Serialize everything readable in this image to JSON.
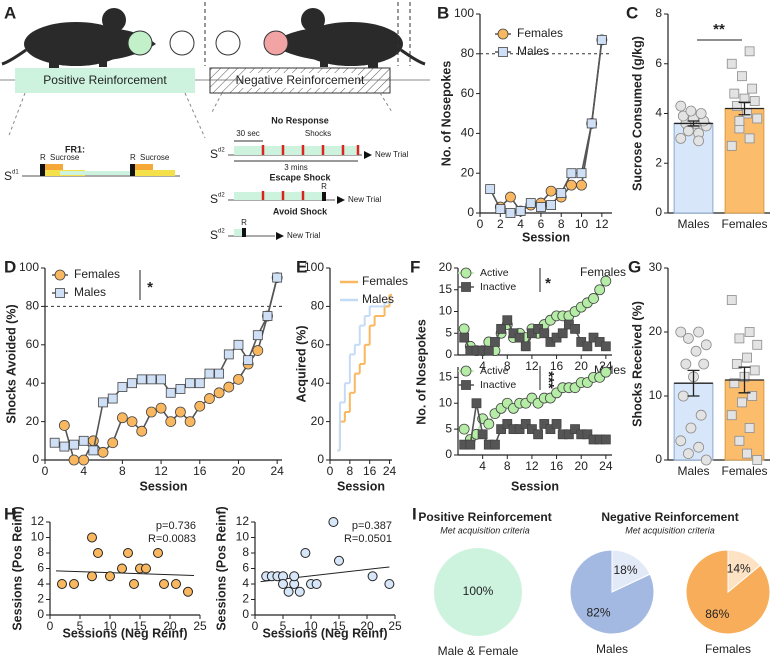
{
  "schematic": {
    "panel": "A",
    "positive": "Positive Reinforcement",
    "negative": "Negative Reinforcement",
    "fr1": {
      "label": "FR1:",
      "stimulus": [
        "S",
        "d1"
      ],
      "events": [
        "R",
        "Sucrose",
        "R",
        "Sucrose"
      ]
    },
    "trials": [
      {
        "title": "No Response",
        "stimulus": [
          "S",
          "d2"
        ],
        "events": [
          "30 sec",
          "Shocks",
          "3 mins"
        ],
        "end": "New Trial"
      },
      {
        "title": "Escape Shock",
        "stimulus": [
          "S",
          "d2"
        ],
        "events": [
          "R"
        ],
        "end": "New Trial"
      },
      {
        "title": "Avoid Shock",
        "stimulus": [
          "S",
          "d2"
        ],
        "events": [
          "R"
        ],
        "end": "New Trial"
      }
    ]
  },
  "chart_data": [
    {
      "type": "line",
      "panel": "B",
      "xlabel": "Session",
      "ylabel": "No. of Nosepokes",
      "legend": "upper center",
      "x": [
        1,
        2,
        3,
        4,
        5,
        6,
        7,
        8,
        9,
        10,
        11,
        12
      ],
      "xlim": [
        0,
        13
      ],
      "xticks": [
        0,
        2,
        4,
        6,
        8,
        10,
        12
      ],
      "ylim": [
        0,
        100
      ],
      "yticks": [
        0,
        20,
        40,
        60,
        80,
        100
      ],
      "hline": 80,
      "series": [
        {
          "name": "Females",
          "color": "#f9b860",
          "line_color": "#555555",
          "marker": "circle",
          "values": [
            null,
            3,
            8,
            1,
            4,
            5,
            11,
            8,
            14,
            14,
            45,
            87
          ]
        },
        {
          "name": "Males",
          "color": "#cfe0f6",
          "line_color": "#555555",
          "marker": "square",
          "values": [
            12,
            2,
            0,
            1,
            5,
            3,
            4,
            10,
            20,
            20,
            45,
            87
          ]
        }
      ]
    },
    {
      "type": "bar",
      "panel": "C",
      "ylabel": "Sucrose Consumed (g/kg)",
      "annotation": "**",
      "categories": [
        "Males",
        "Females"
      ],
      "values": [
        3.6,
        4.2
      ],
      "errors": [
        0.1,
        0.25
      ],
      "colors": [
        "#d7e6f8",
        "#fbbd6c"
      ],
      "edge": [
        "#8aa8d2",
        "#d99a45"
      ],
      "markers": [
        "circle",
        "square"
      ],
      "points": [
        [
          3.0,
          3.2,
          3.4,
          3.5,
          3.6,
          3.6,
          3.7,
          3.8,
          3.9,
          4.0,
          4.1,
          4.3,
          2.9,
          3.3
        ],
        [
          2.7,
          3.0,
          3.4,
          3.8,
          4.0,
          4.3,
          4.5,
          4.6,
          4.8,
          5.0,
          5.5,
          6.0,
          6.5,
          3.7
        ]
      ],
      "ylim": [
        0,
        8
      ],
      "yticks": [
        0,
        2,
        4,
        6,
        8
      ]
    },
    {
      "type": "line",
      "panel": "D",
      "xlabel": "Session",
      "ylabel": "Shocks Avoided (%)",
      "legend": "upper left",
      "annotation": "*",
      "xlim": [
        0,
        24.5
      ],
      "xticks": [
        0,
        4,
        8,
        12,
        16,
        20,
        24
      ],
      "ylim": [
        0,
        100
      ],
      "yticks": [
        0,
        20,
        40,
        60,
        80,
        100
      ],
      "hline": 80,
      "series": [
        {
          "name": "Females",
          "color": "#f9b860",
          "line_color": "#555555",
          "marker": "circle",
          "x": [
            2,
            3,
            4,
            5,
            6,
            7,
            8,
            9,
            10,
            11,
            12,
            13,
            14,
            15,
            16,
            17,
            18,
            19,
            20,
            21,
            22,
            23,
            24
          ],
          "values": [
            18,
            0,
            0,
            10,
            4,
            9,
            22,
            20,
            15,
            25,
            27,
            20,
            25,
            20,
            28,
            32,
            35,
            38,
            42,
            50,
            57,
            75,
            95
          ]
        },
        {
          "name": "Males",
          "color": "#cfe0f6",
          "line_color": "#555555",
          "marker": "square",
          "x": [
            1,
            2,
            3,
            4,
            5,
            6,
            7,
            8,
            9,
            10,
            11,
            12,
            13,
            14,
            15,
            16,
            17,
            18,
            19,
            20,
            21,
            22,
            23,
            24
          ],
          "values": [
            9,
            7,
            8,
            10,
            5,
            30,
            32,
            38,
            40,
            42,
            42,
            42,
            35,
            37,
            40,
            40,
            45,
            45,
            55,
            60,
            52,
            65,
            75,
            95
          ]
        }
      ]
    },
    {
      "type": "line",
      "step": true,
      "panel": "E",
      "xlabel": "Session",
      "ylabel": "Acquired (%)",
      "legend": "upper left",
      "x": [
        3,
        4,
        6,
        8,
        10,
        12,
        14,
        16,
        18,
        20,
        22,
        24
      ],
      "xlim": [
        0,
        25
      ],
      "xticks": [
        0,
        8,
        16,
        24
      ],
      "ylim": [
        0,
        100
      ],
      "yticks": [
        0,
        20,
        40,
        60,
        80,
        100
      ],
      "series": [
        {
          "name": "Females",
          "color": "#f9b860",
          "values": [
            5,
            20,
            25,
            35,
            45,
            50,
            60,
            70,
            75,
            75,
            80,
            86
          ]
        },
        {
          "name": "Males",
          "color": "#c4dbf6",
          "values": [
            5,
            30,
            40,
            55,
            60,
            70,
            75,
            80,
            80,
            80,
            82,
            82
          ]
        }
      ]
    },
    {
      "type": "line",
      "panel": "F",
      "ylabel": "No. of Nosepokes",
      "legend": "upper left",
      "group": "Females",
      "annotation": "*",
      "x": [
        1,
        2,
        3,
        4,
        5,
        6,
        7,
        8,
        9,
        10,
        11,
        12,
        13,
        14,
        15,
        16,
        17,
        18,
        19,
        20,
        21,
        22,
        23,
        24
      ],
      "xlim": [
        0,
        25
      ],
      "xticks": [
        4,
        8,
        12,
        16,
        20,
        24
      ],
      "ylim": [
        0,
        20
      ],
      "yticks": [
        0,
        5,
        10,
        15,
        20
      ],
      "series": [
        {
          "name": "Active",
          "color": "#b5eca6",
          "marker": "circle",
          "values": [
            6,
            2,
            1,
            1,
            3,
            1,
            5,
            7,
            4,
            5,
            4,
            6,
            5,
            7,
            8,
            9,
            9,
            9,
            10,
            11,
            12,
            13,
            15,
            17
          ]
        },
        {
          "name": "Inactive",
          "color": "#555555",
          "marker": "square",
          "values": [
            4,
            1,
            1,
            1,
            1,
            3,
            6,
            8,
            5,
            4,
            2,
            5,
            6,
            5,
            3,
            4,
            5,
            7,
            6,
            3,
            2,
            4,
            3,
            2
          ]
        }
      ]
    },
    {
      "type": "line",
      "xlabel": "Session",
      "legend": "upper left",
      "group": "Males",
      "annotation": "***",
      "x": [
        1,
        2,
        3,
        4,
        5,
        6,
        7,
        8,
        9,
        10,
        11,
        12,
        13,
        14,
        15,
        16,
        17,
        18,
        19,
        20,
        21,
        22,
        23,
        24
      ],
      "xlim": [
        0,
        25
      ],
      "xticks": [
        4,
        8,
        12,
        16,
        20,
        24
      ],
      "ylim": [
        0,
        17
      ],
      "yticks": [
        0,
        5,
        10,
        15
      ],
      "series": [
        {
          "name": "Active",
          "color": "#b5eca6",
          "marker": "circle",
          "values": [
            5,
            3,
            4,
            7,
            6,
            8,
            9,
            10,
            9,
            10,
            10,
            11,
            10,
            11,
            11,
            12,
            13,
            13,
            13,
            14,
            14,
            15,
            15,
            16
          ]
        },
        {
          "name": "Inactive",
          "color": "#555555",
          "marker": "square",
          "values": [
            2,
            2,
            10,
            4,
            2,
            2,
            5,
            6,
            5,
            5,
            6,
            5,
            4,
            6,
            5,
            6,
            4,
            4,
            5,
            4,
            4,
            3,
            3,
            3
          ]
        }
      ]
    },
    {
      "type": "bar",
      "panel": "G",
      "ylabel": "Shocks Received (%)",
      "categories": [
        "Males",
        "Females"
      ],
      "values": [
        12,
        12.5
      ],
      "errors": [
        2,
        2
      ],
      "colors": [
        "#d7e6f8",
        "#fbbd6c"
      ],
      "edge": [
        "#8aa8d2",
        "#d99a45"
      ],
      "markers": [
        "circle",
        "square"
      ],
      "points": [
        [
          20,
          20,
          19,
          18,
          17,
          15,
          15,
          13,
          10,
          7,
          5,
          3,
          2,
          1,
          0
        ],
        [
          25,
          20,
          19,
          18,
          16,
          15,
          14,
          13,
          12,
          10,
          9,
          7,
          5,
          3,
          0,
          1
        ]
      ],
      "ylim": [
        0,
        30
      ],
      "yticks": [
        0,
        10,
        20,
        30
      ]
    },
    {
      "type": "scatter",
      "panel": "H",
      "xlabel": "Sessions (Neg Reinf)",
      "ylabel": "Sessions (Pos Reinf)",
      "color": "#f9b860",
      "annotations": [
        "p=0.736",
        "R=0.0083"
      ],
      "x": [
        2,
        4,
        7,
        7,
        8,
        10,
        12,
        13,
        14,
        15,
        16,
        18,
        19,
        21,
        23
      ],
      "y": [
        4,
        4,
        10,
        5,
        8,
        5,
        6,
        8,
        4,
        6,
        6,
        8,
        4,
        4,
        3
      ],
      "fit": {
        "x": [
          1,
          24
        ],
        "y": [
          5.7,
          5.1
        ]
      },
      "xlim": [
        0,
        25
      ],
      "xticks": [
        0,
        5,
        10,
        15,
        20,
        25
      ],
      "ylim": [
        0,
        12
      ],
      "yticks": [
        0,
        2,
        4,
        6,
        8,
        10,
        12
      ]
    },
    {
      "type": "scatter",
      "xlabel": "Sessions (Neg Reinf)",
      "ylabel": "Sessions (Pos Reinf)",
      "color": "#d7e6f8",
      "annotations": [
        "p=0.387",
        "R=0.0501"
      ],
      "x": [
        2,
        3,
        4,
        5,
        5,
        6,
        7,
        7,
        8,
        9,
        10,
        11,
        14,
        15,
        21,
        24
      ],
      "y": [
        5,
        5,
        5,
        5,
        4,
        3,
        4,
        5,
        3,
        8,
        4,
        4,
        12,
        7,
        5,
        4
      ],
      "fit": {
        "x": [
          1,
          24
        ],
        "y": [
          4.3,
          6.2
        ]
      },
      "xlim": [
        0,
        25
      ],
      "xticks": [
        0,
        5,
        10,
        15,
        20,
        25
      ],
      "ylim": [
        0,
        12
      ],
      "yticks": [
        0,
        2,
        4,
        6,
        8,
        10,
        12
      ]
    },
    {
      "type": "pie",
      "panel": "I",
      "title": "Positive Reinforcement",
      "subtitle": "Met acquisition criteria",
      "caption": "Male & Female",
      "values": [
        100
      ],
      "value_labels": [
        "100%"
      ],
      "colors": [
        "#cdf3df"
      ]
    },
    {
      "type": "pie",
      "title": "Negative Reinforcement",
      "subtitle": "Met acquisition criteria",
      "caption": "Males",
      "values": [
        82,
        18
      ],
      "value_labels": [
        "82%",
        "18%"
      ],
      "colors": [
        "#a3b9e2",
        "#e3eaf7"
      ]
    },
    {
      "type": "pie",
      "caption": "Females",
      "values": [
        86,
        14
      ],
      "value_labels": [
        "86%",
        "14%"
      ],
      "colors": [
        "#f8ad5a",
        "#fde3c3"
      ]
    }
  ]
}
